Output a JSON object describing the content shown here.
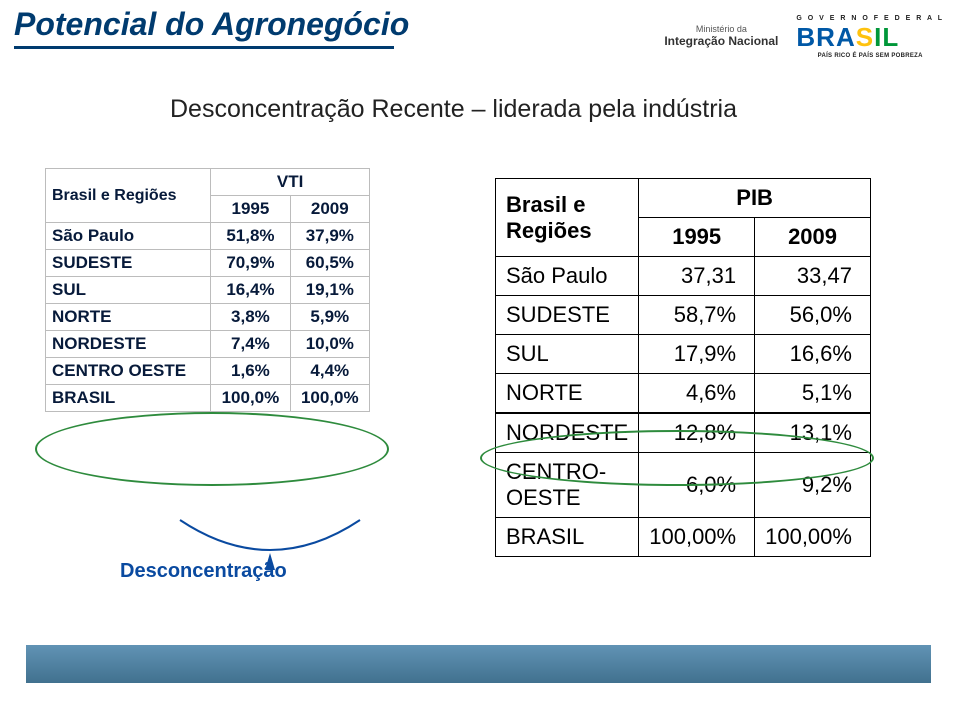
{
  "title": "Potencial do Agronegócio",
  "subtitle": "Desconcentração Recente – liderada pela indústria",
  "logos": {
    "ministry_line1": "Ministério da",
    "ministry_line2": "Integração Nacional",
    "gov_top": "G O V E R N O   F E D E R A L",
    "gov_brasil": {
      "b": "B",
      "r": "R",
      "a": "A",
      "s": "S",
      "i": "I",
      "l": "L"
    },
    "gov_bot": "PAÍS RICO É PAÍS SEM POBREZA"
  },
  "vti": {
    "group_header": "Brasil e Regiões",
    "metric_header": "VTI",
    "years": [
      "1995",
      "2009"
    ],
    "rows": [
      {
        "label": "São Paulo",
        "a": "51,8%",
        "b": "37,9%"
      },
      {
        "label": "SUDESTE",
        "a": "70,9%",
        "b": "60,5%"
      },
      {
        "label": "SUL",
        "a": "16,4%",
        "b": "19,1%"
      },
      {
        "label": "NORTE",
        "a": "3,8%",
        "b": "5,9%"
      },
      {
        "label": "NORDESTE",
        "a": "7,4%",
        "b": "10,0%"
      },
      {
        "label": "CENTRO OESTE",
        "a": "1,6%",
        "b": "4,4%"
      },
      {
        "label": "BRASIL",
        "a": "100,0%",
        "b": "100,0%"
      }
    ],
    "footer": "Desconcentração"
  },
  "pib": {
    "group_header": "Brasil e Regiões",
    "metric_header": "PIB",
    "years": [
      "1995",
      "2009"
    ],
    "rows_top": [
      {
        "label": "São Paulo",
        "a": "37,31",
        "b": "33,47"
      },
      {
        "label": "SUDESTE",
        "a": "58,7%",
        "b": "56,0%"
      },
      {
        "label": "SUL",
        "a": "17,9%",
        "b": "16,6%"
      },
      {
        "label": "NORTE",
        "a": "4,6%",
        "b": "5,1%"
      }
    ],
    "rows_bot": [
      {
        "label": "NORDESTE",
        "a": "12,8%",
        "b": "13,1%"
      },
      {
        "label": "CENTRO-OESTE",
        "a": "6,0%",
        "b": "9,2%"
      },
      {
        "label": "BRASIL",
        "a": "100,00%",
        "b": "100,00%"
      }
    ]
  },
  "colors": {
    "title": "#003b6f",
    "ellipse": "#2e8b3d",
    "bottombar_top": "#6193b5",
    "bottombar_bot": "#41718f"
  }
}
